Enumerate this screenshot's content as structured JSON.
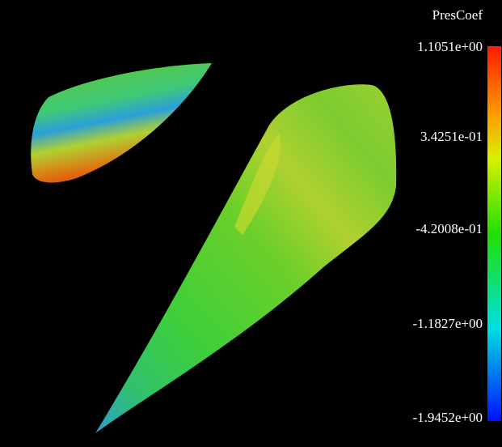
{
  "colorbar": {
    "title": "PresCoef",
    "labels": [
      "1.1051e+00",
      "3.4251e-01",
      "-4.2008e-01",
      "-1.1827e+00",
      "-1.9452e+00"
    ]
  }
}
